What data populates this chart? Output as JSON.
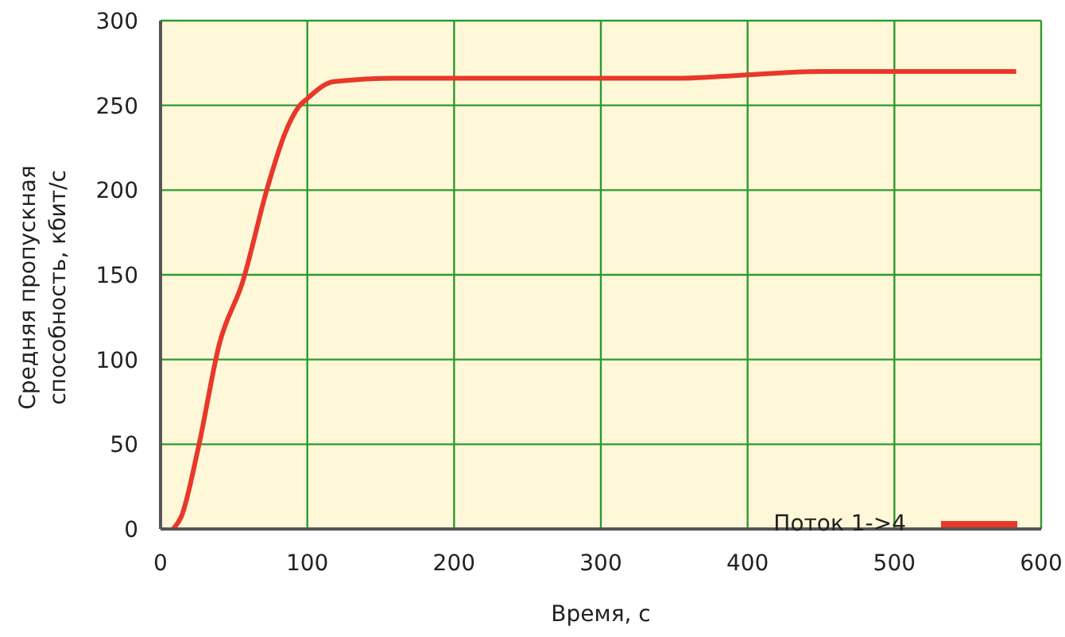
{
  "chart_data": {
    "type": "line",
    "xlabel": "Время, с",
    "ylabel": "Средняя пропускная способность, кбит/с",
    "xlim": [
      0,
      600
    ],
    "xticks": [
      0,
      100,
      200,
      300,
      400,
      500,
      600
    ],
    "ylim": [
      0,
      300
    ],
    "yticks": [
      0,
      50,
      100,
      150,
      200,
      250,
      300
    ],
    "grid": true,
    "legend": "bottom right",
    "series": [
      {
        "name": "Поток 1->4",
        "color": "#e8382a",
        "x": [
          8.6,
          14,
          26,
          40,
          56,
          73,
          85,
          94,
          100,
          118,
          161,
          204,
          300,
          354,
          400,
          451,
          500,
          583
        ],
        "values": [
          0,
          7,
          49,
          109,
          146,
          202,
          234,
          249,
          254,
          264,
          266,
          266,
          266,
          266,
          268,
          270,
          270,
          270
        ]
      }
    ]
  }
}
